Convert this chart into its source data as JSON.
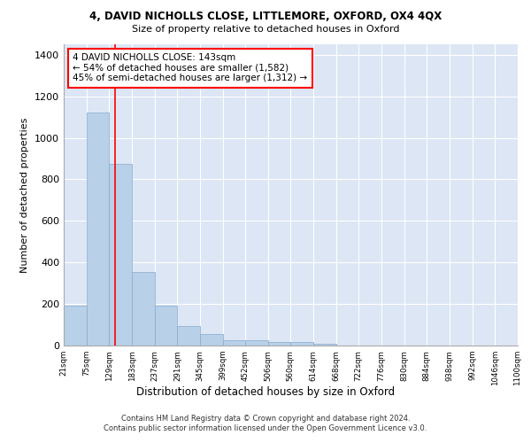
{
  "title": "4, DAVID NICHOLLS CLOSE, LITTLEMORE, OXFORD, OX4 4QX",
  "subtitle": "Size of property relative to detached houses in Oxford",
  "xlabel": "Distribution of detached houses by size in Oxford",
  "ylabel": "Number of detached properties",
  "bar_color": "#b8d0e8",
  "bar_edge_color": "#88aacc",
  "background_color": "#dce6f5",
  "grid_color": "#ffffff",
  "property_line_x": 143,
  "annotation_line1": "4 DAVID NICHOLLS CLOSE: 143sqm",
  "annotation_line2": "← 54% of detached houses are smaller (1,582)",
  "annotation_line3": "45% of semi-detached houses are larger (1,312) →",
  "footer_text": "Contains HM Land Registry data © Crown copyright and database right 2024.\nContains public sector information licensed under the Open Government Licence v3.0.",
  "bins": [
    21,
    75,
    129,
    183,
    237,
    291,
    345,
    399,
    452,
    506,
    560,
    614,
    668,
    722,
    776,
    830,
    884,
    938,
    992,
    1046,
    1100
  ],
  "bin_labels": [
    "21sqm",
    "75sqm",
    "129sqm",
    "183sqm",
    "237sqm",
    "291sqm",
    "345sqm",
    "399sqm",
    "452sqm",
    "506sqm",
    "560sqm",
    "614sqm",
    "668sqm",
    "722sqm",
    "776sqm",
    "830sqm",
    "884sqm",
    "938sqm",
    "992sqm",
    "1046sqm",
    "1100sqm"
  ],
  "counts": [
    190,
    1120,
    875,
    355,
    190,
    95,
    55,
    25,
    25,
    18,
    15,
    10,
    0,
    0,
    0,
    0,
    0,
    0,
    0,
    0
  ],
  "ylim_max": 1450,
  "yticks": [
    0,
    200,
    400,
    600,
    800,
    1000,
    1200,
    1400
  ]
}
